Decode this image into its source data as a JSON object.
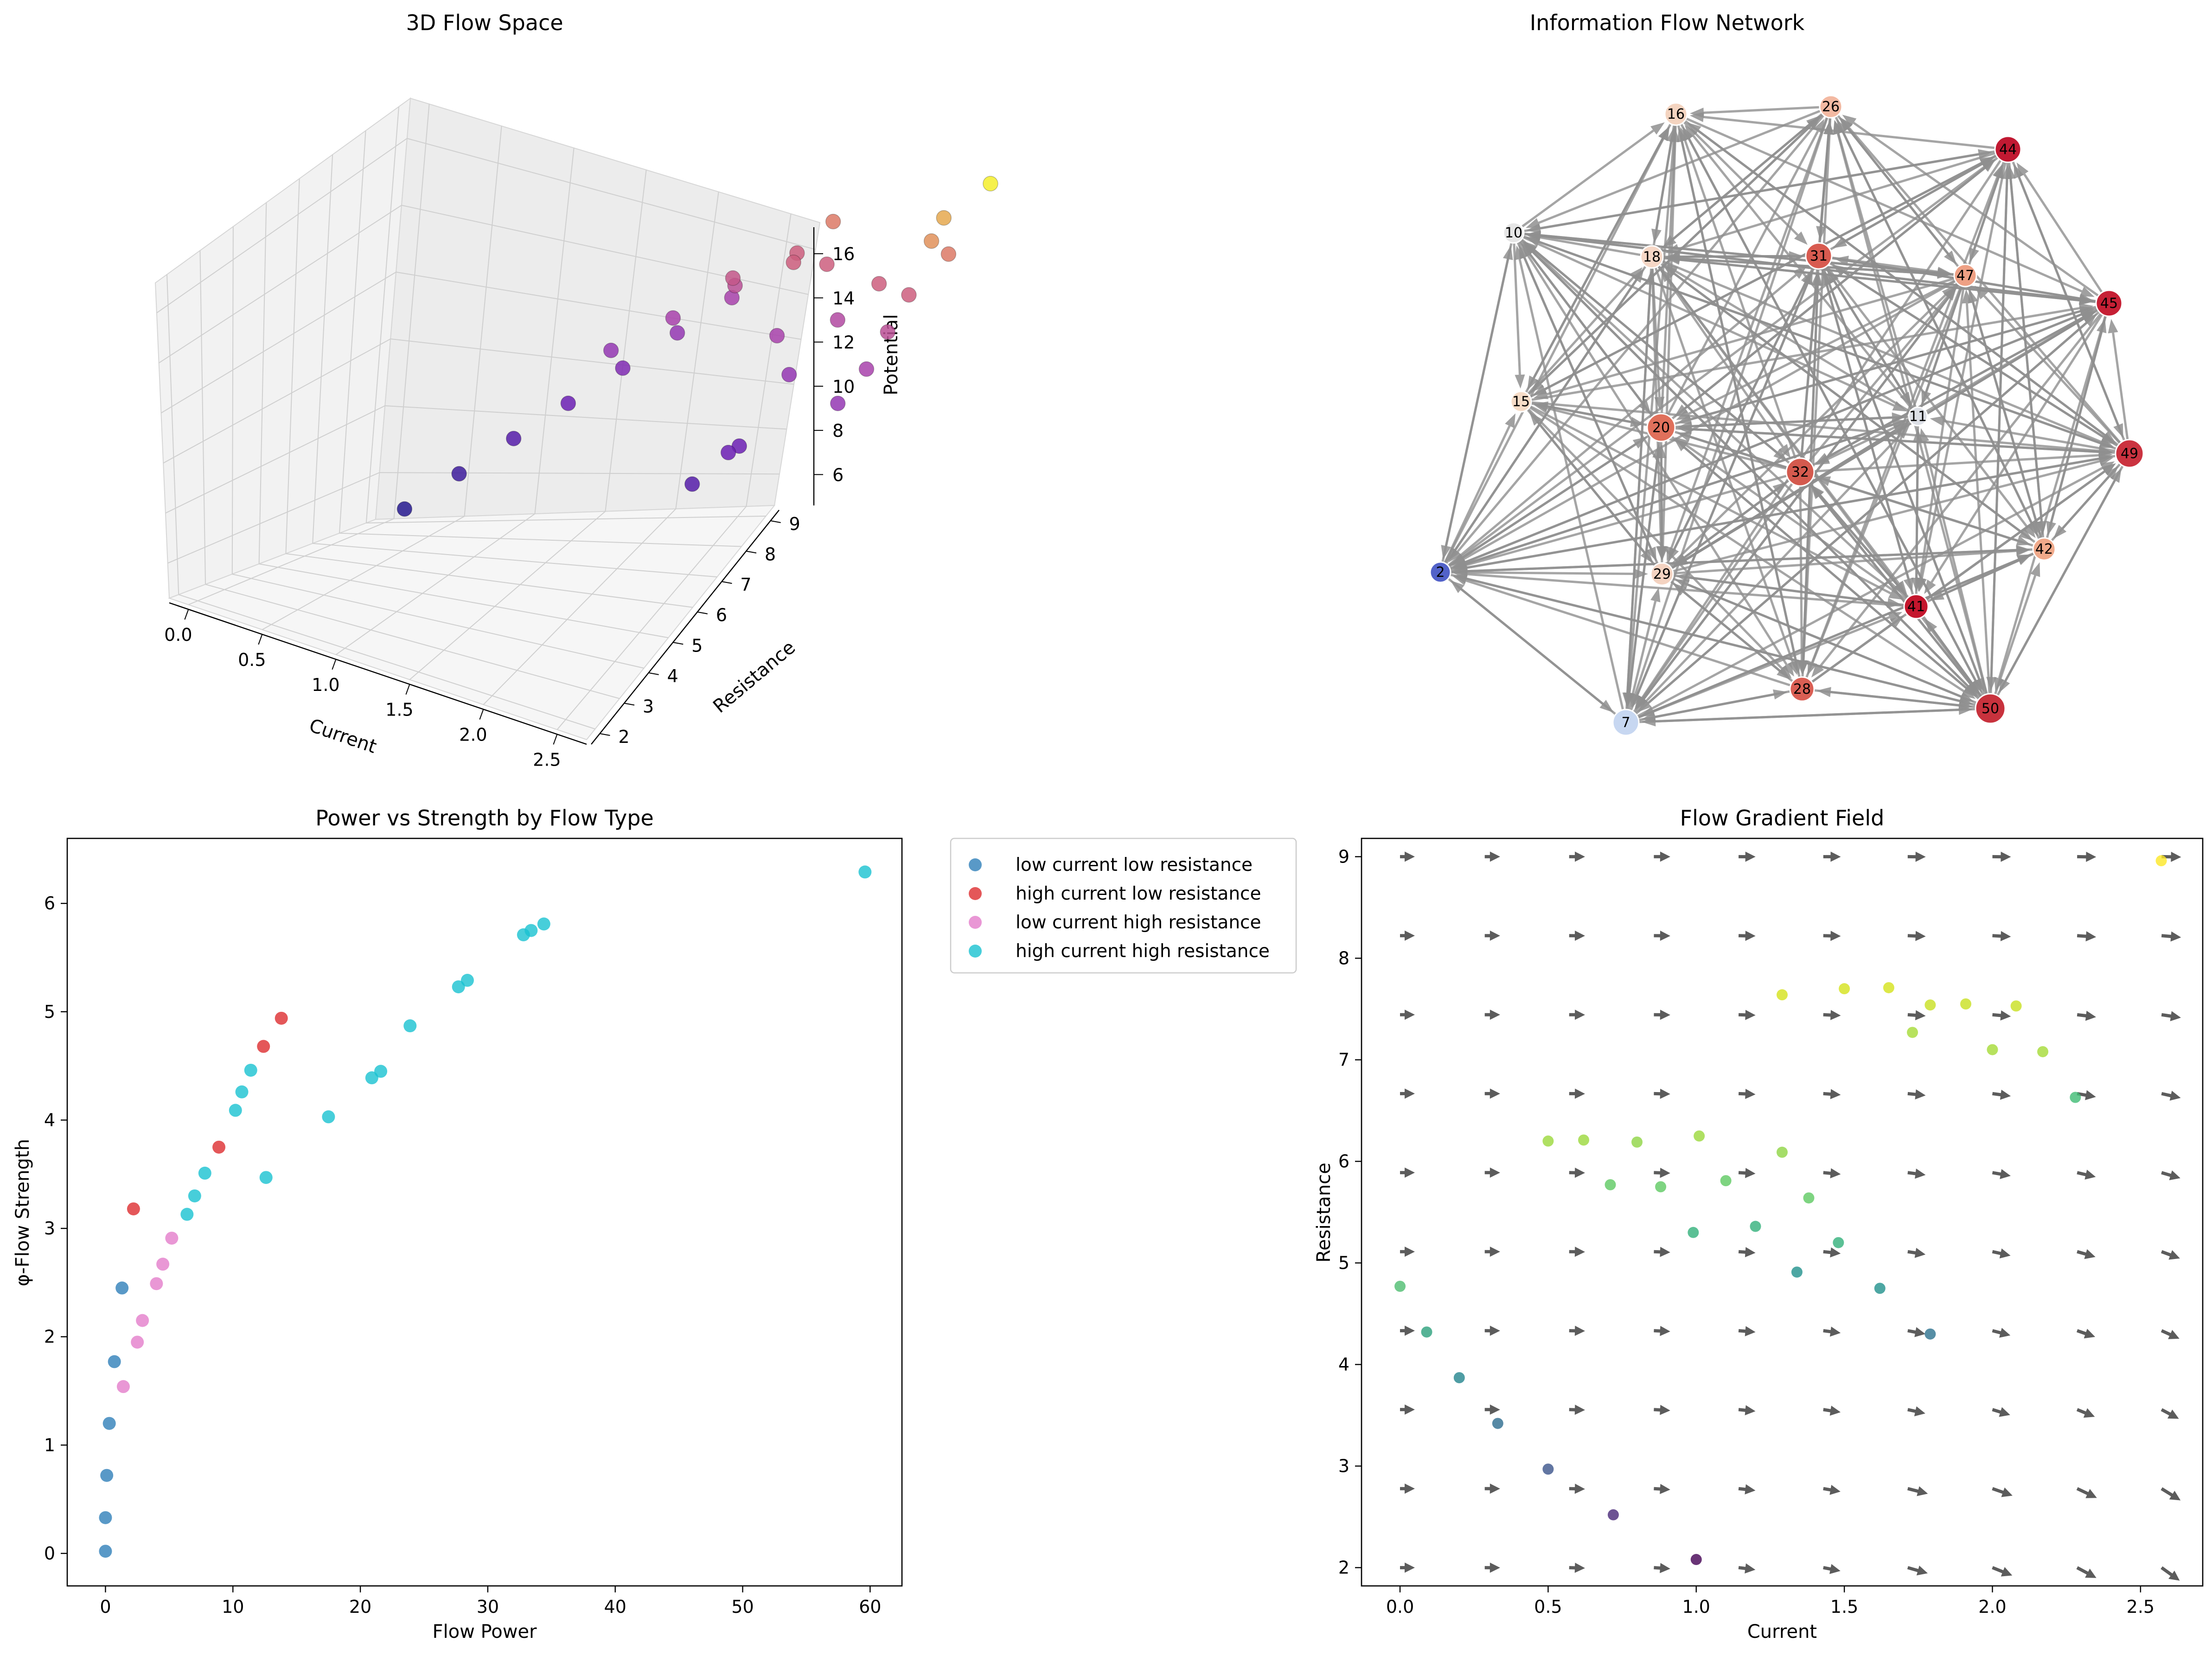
{
  "chart_data": [
    {
      "type": "scatter3d",
      "title": "3D Flow Space",
      "xlabel": "Current",
      "ylabel": "Resistance",
      "zlabel": "Potential",
      "x_ticks": [
        "0.0",
        "0.5",
        "1.0",
        "1.5",
        "2.0",
        "2.5"
      ],
      "y_ticks": [
        "2",
        "3",
        "4",
        "5",
        "6",
        "7",
        "8",
        "9"
      ],
      "z_ticks": [
        "6",
        "8",
        "10",
        "12",
        "14",
        "16"
      ],
      "colormap": [
        "#271a8f",
        "#6a1fb4",
        "#a33fb2",
        "#d8676f",
        "#f4ee2c"
      ],
      "points": [
        {
          "x": 0.0,
          "y": 2.0,
          "z": 5.0
        },
        {
          "x": 0.0,
          "y": 3.0,
          "z": 6.0
        },
        {
          "x": 0.0,
          "y": 4.0,
          "z": 7.0
        },
        {
          "x": 0.0,
          "y": 5.0,
          "z": 8.0
        },
        {
          "x": 0.0,
          "y": 6.0,
          "z": 9.0
        },
        {
          "x": 0.0,
          "y": 7.0,
          "z": 10.0
        },
        {
          "x": 0.0,
          "y": 8.0,
          "z": 11.0
        },
        {
          "x": 0.5,
          "y": 5.0,
          "z": 10.0
        },
        {
          "x": 0.6,
          "y": 6.0,
          "z": 11.0
        },
        {
          "x": 0.7,
          "y": 7.0,
          "z": 12.0
        },
        {
          "x": 0.8,
          "y": 8.0,
          "z": 13.0
        },
        {
          "x": 0.9,
          "y": 8.5,
          "z": 14.0
        },
        {
          "x": 1.0,
          "y": 6.5,
          "z": 12.5
        },
        {
          "x": 1.1,
          "y": 7.5,
          "z": 13.0
        },
        {
          "x": 1.2,
          "y": 8.0,
          "z": 13.0
        },
        {
          "x": 1.3,
          "y": 7.0,
          "z": 11.0
        },
        {
          "x": 1.4,
          "y": 8.0,
          "z": 11.5
        },
        {
          "x": 1.5,
          "y": 7.0,
          "z": 10.0
        },
        {
          "x": 1.6,
          "y": 6.0,
          "z": 8.0
        },
        {
          "x": 1.7,
          "y": 5.0,
          "z": 7.0
        },
        {
          "x": 1.8,
          "y": 5.5,
          "z": 8.0
        },
        {
          "x": 1.9,
          "y": 8.0,
          "z": 13.0
        },
        {
          "x": 2.0,
          "y": 9.0,
          "z": 15.0
        },
        {
          "x": 2.1,
          "y": 9.0,
          "z": 14.0
        },
        {
          "x": 2.2,
          "y": 8.5,
          "z": 14.5
        },
        {
          "x": 2.3,
          "y": 8.0,
          "z": 13.0
        },
        {
          "x": 2.4,
          "y": 7.5,
          "z": 12.0
        },
        {
          "x": 2.5,
          "y": 7.0,
          "z": 11.0
        },
        {
          "x": 2.5,
          "y": 6.5,
          "z": 10.0
        },
        {
          "x": 2.57,
          "y": 9.0,
          "z": 16.5
        }
      ]
    },
    {
      "type": "network",
      "title": "Information Flow Network",
      "nodes": [
        {
          "id": "2",
          "color": "#5262c9"
        },
        {
          "id": "7",
          "color": "#c7d7f1"
        },
        {
          "id": "10",
          "color": "#e6e6e6"
        },
        {
          "id": "11",
          "color": "#dcdfe6"
        },
        {
          "id": "15",
          "color": "#f6dcc7"
        },
        {
          "id": "16",
          "color": "#f4d4c0"
        },
        {
          "id": "18",
          "color": "#f6d7c6"
        },
        {
          "id": "20",
          "color": "#e0705b"
        },
        {
          "id": "26",
          "color": "#f3b9a2"
        },
        {
          "id": "28",
          "color": "#da5f54"
        },
        {
          "id": "29",
          "color": "#f4d3c1"
        },
        {
          "id": "31",
          "color": "#d85b50"
        },
        {
          "id": "32",
          "color": "#d45a4e"
        },
        {
          "id": "41",
          "color": "#c4162d"
        },
        {
          "id": "42",
          "color": "#f0a98a"
        },
        {
          "id": "44",
          "color": "#c11932"
        },
        {
          "id": "45",
          "color": "#c62035"
        },
        {
          "id": "47",
          "color": "#eea084"
        },
        {
          "id": "49",
          "color": "#cb3340"
        },
        {
          "id": "50",
          "color": "#c8323d"
        }
      ]
    },
    {
      "type": "scatter",
      "title": "Power vs Strength by Flow Type",
      "xlabel": "Flow Power",
      "ylabel": "φ-Flow Strength",
      "xlim": [
        -3,
        62.5
      ],
      "ylim": [
        -0.3,
        6.6
      ],
      "x_ticks": [
        "0",
        "10",
        "20",
        "30",
        "40",
        "50",
        "60"
      ],
      "y_ticks": [
        "0",
        "1",
        "2",
        "3",
        "4",
        "5",
        "6"
      ],
      "legend_position": "outside-right",
      "series": [
        {
          "name": "low current low resistance",
          "color": "#2f7fb9",
          "points": [
            [
              0.0,
              0.02
            ],
            [
              0.0,
              0.33
            ],
            [
              0.1,
              0.72
            ],
            [
              0.3,
              1.2
            ],
            [
              0.7,
              1.77
            ],
            [
              1.3,
              2.45
            ]
          ]
        },
        {
          "name": "high current low resistance",
          "color": "#dd2d2f",
          "points": [
            [
              2.2,
              3.18
            ],
            [
              8.9,
              3.75
            ],
            [
              12.4,
              4.68
            ],
            [
              13.8,
              4.94
            ]
          ]
        },
        {
          "name": "low current high resistance",
          "color": "#e37dcb",
          "points": [
            [
              1.4,
              1.54
            ],
            [
              2.5,
              1.95
            ],
            [
              2.9,
              2.15
            ],
            [
              4.0,
              2.49
            ],
            [
              4.5,
              2.67
            ],
            [
              5.2,
              2.91
            ]
          ]
        },
        {
          "name": "high current high resistance",
          "color": "#19c2d1",
          "points": [
            [
              6.4,
              3.13
            ],
            [
              7.0,
              3.3
            ],
            [
              7.8,
              3.51
            ],
            [
              10.2,
              4.09
            ],
            [
              10.7,
              4.26
            ],
            [
              11.4,
              4.46
            ],
            [
              12.6,
              3.47
            ],
            [
              17.5,
              4.03
            ],
            [
              20.9,
              4.39
            ],
            [
              21.6,
              4.45
            ],
            [
              23.9,
              4.87
            ],
            [
              27.7,
              5.23
            ],
            [
              28.4,
              5.29
            ],
            [
              32.8,
              5.71
            ],
            [
              33.4,
              5.75
            ],
            [
              34.4,
              5.81
            ],
            [
              59.6,
              6.29
            ]
          ]
        }
      ]
    },
    {
      "type": "quiver",
      "title": "Flow Gradient Field",
      "xlabel": "Current",
      "ylabel": "Resistance",
      "xlim": [
        -0.13,
        2.71
      ],
      "ylim": [
        1.82,
        9.18
      ],
      "x_ticks": [
        "0.0",
        "0.5",
        "1.0",
        "1.5",
        "2.0",
        "2.5"
      ],
      "y_ticks": [
        "2",
        "3",
        "4",
        "5",
        "6",
        "7",
        "8",
        "9"
      ],
      "grid_x": [
        0.0,
        0.286,
        0.571,
        0.857,
        1.143,
        1.429,
        1.714,
        2.0,
        2.286,
        2.571
      ],
      "grid_y": [
        2.0,
        2.778,
        3.556,
        4.333,
        5.111,
        5.889,
        6.667,
        7.444,
        8.222,
        9.0
      ],
      "scatter": [
        {
          "x": 0.0,
          "y": 4.77,
          "color": "#4dbd6f"
        },
        {
          "x": 0.09,
          "y": 4.32,
          "color": "#2ca07c"
        },
        {
          "x": 0.2,
          "y": 3.87,
          "color": "#23848d"
        },
        {
          "x": 0.33,
          "y": 3.42,
          "color": "#2c6c8e"
        },
        {
          "x": 0.5,
          "y": 2.97,
          "color": "#3b548b"
        },
        {
          "x": 0.72,
          "y": 2.52,
          "color": "#482878"
        },
        {
          "x": 1.0,
          "y": 2.08,
          "color": "#440154"
        },
        {
          "x": 0.5,
          "y": 6.2,
          "color": "#9bd83b"
        },
        {
          "x": 0.62,
          "y": 6.21,
          "color": "#9bd83b"
        },
        {
          "x": 0.8,
          "y": 6.19,
          "color": "#8fd444"
        },
        {
          "x": 1.01,
          "y": 6.25,
          "color": "#9bd83b"
        },
        {
          "x": 1.29,
          "y": 6.09,
          "color": "#8fd444"
        },
        {
          "x": 0.71,
          "y": 5.77,
          "color": "#5ec961"
        },
        {
          "x": 0.88,
          "y": 5.75,
          "color": "#5ec961"
        },
        {
          "x": 1.1,
          "y": 5.81,
          "color": "#5ec961"
        },
        {
          "x": 1.38,
          "y": 5.64,
          "color": "#5ec961"
        },
        {
          "x": 0.99,
          "y": 5.3,
          "color": "#32b07a"
        },
        {
          "x": 1.2,
          "y": 5.36,
          "color": "#32b07a"
        },
        {
          "x": 1.48,
          "y": 5.2,
          "color": "#32b07a"
        },
        {
          "x": 1.34,
          "y": 4.91,
          "color": "#21918c"
        },
        {
          "x": 1.62,
          "y": 4.75,
          "color": "#21918c"
        },
        {
          "x": 1.79,
          "y": 4.3,
          "color": "#2c728e"
        },
        {
          "x": 1.29,
          "y": 7.64,
          "color": "#d5e21a"
        },
        {
          "x": 1.5,
          "y": 7.7,
          "color": "#d5e21a"
        },
        {
          "x": 1.65,
          "y": 7.71,
          "color": "#d5e21a"
        },
        {
          "x": 1.79,
          "y": 7.54,
          "color": "#c8e020"
        },
        {
          "x": 1.91,
          "y": 7.55,
          "color": "#c8e020"
        },
        {
          "x": 2.08,
          "y": 7.53,
          "color": "#c8e020"
        },
        {
          "x": 1.73,
          "y": 7.27,
          "color": "#a5db36"
        },
        {
          "x": 2.0,
          "y": 7.1,
          "color": "#a5db36"
        },
        {
          "x": 2.17,
          "y": 7.08,
          "color": "#a5db36"
        },
        {
          "x": 2.28,
          "y": 6.63,
          "color": "#3ebc74"
        },
        {
          "x": 2.57,
          "y": 8.96,
          "color": "#fde725"
        }
      ]
    }
  ]
}
